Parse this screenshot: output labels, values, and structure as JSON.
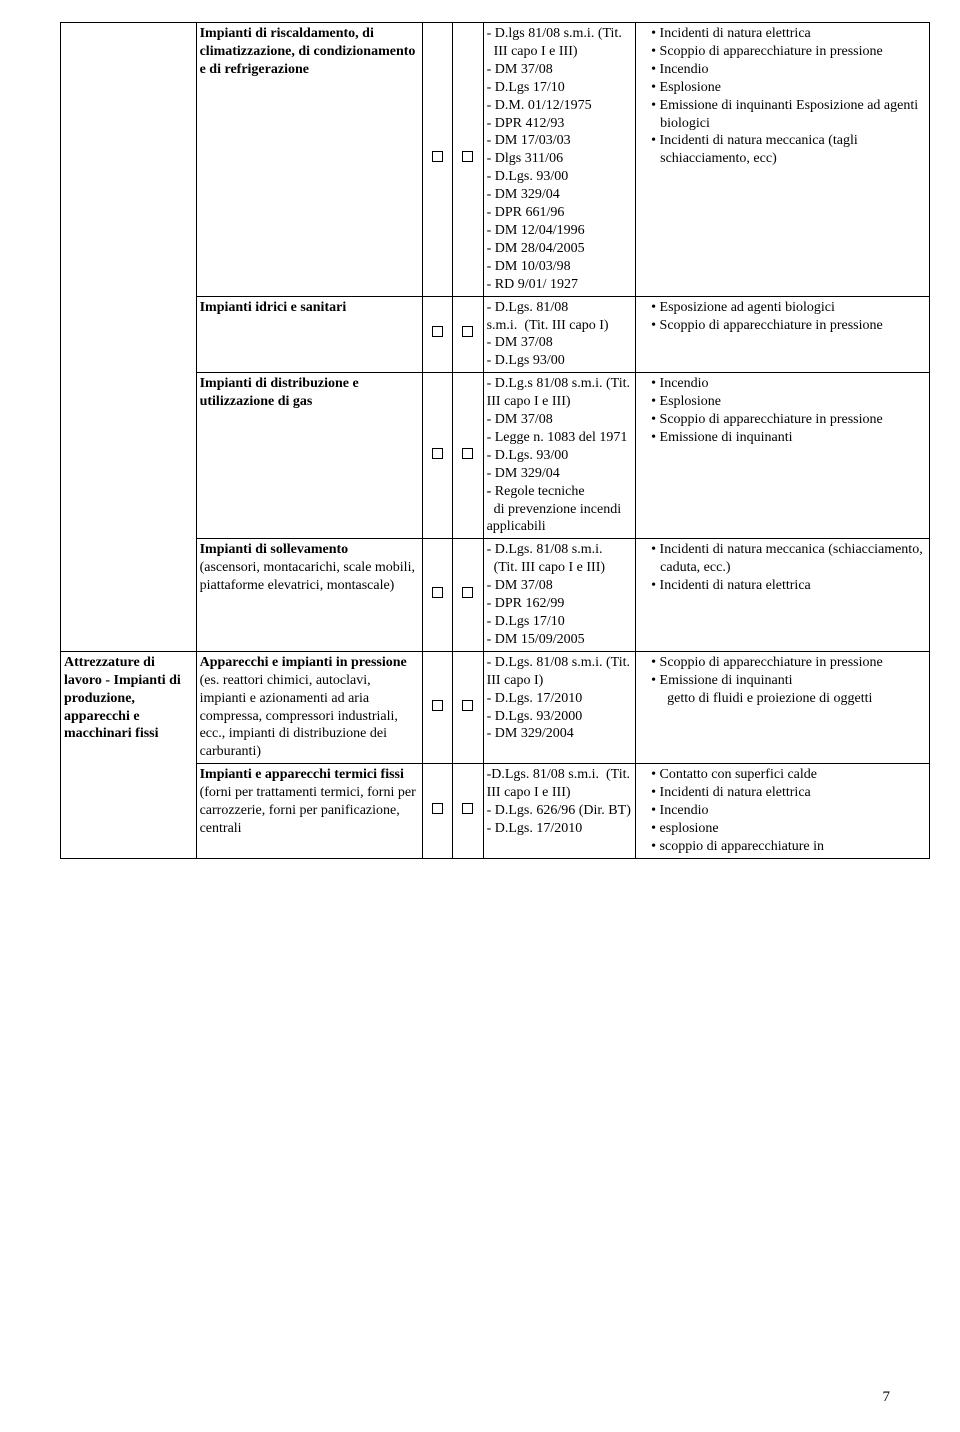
{
  "pageNumber": "7",
  "groupHeader": "Attrezzature di lavoro - Impianti di produzione, apparecchi e macchinari fissi",
  "rows": [
    {
      "col1_bold": "Impianti di riscaldamento, di climatizzazione, di condizionamento e di refrigerazione",
      "col1_plain": "",
      "col4": "- D.lgs 81/08 s.m.i. (Tit.\n  III capo I e III)\n- DM 37/08\n- D.Lgs 17/10\n- D.M. 01/12/1975\n- DPR 412/93\n- DM 17/03/03\n- Dlgs 311/06\n- D.Lgs. 93/00\n- DM 329/04\n- DPR 661/96\n- DM 12/04/1996\n- DM 28/04/2005\n- DM 10/03/98\n- RD 9/01/ 1927",
      "bullets": [
        "Incidenti di natura elettrica",
        "Scoppio di apparecchiature in pressione",
        "Incendio",
        "Esplosione",
        "Emissione di inquinanti Esposizione ad agenti biologici",
        "Incidenti di natura meccanica (tagli schiacciamento, ecc)"
      ]
    },
    {
      "col1_bold": "Impianti idrici e sanitari",
      "col1_plain": "",
      "col4": "- D.Lgs. 81/08 s.m.i.  (Tit. III capo I)\n- DM 37/08\n- D.Lgs 93/00",
      "bullets": [
        "Esposizione ad agenti biologici",
        "Scoppio di apparecchiature in pressione"
      ]
    },
    {
      "col1_bold": "Impianti di distribuzione e utilizzazione di gas",
      "col1_plain": "",
      "col4": "- D.Lg.s 81/08 s.m.i. (Tit. III capo I e III)\n- DM 37/08\n- Legge n. 1083 del 1971\n- D.Lgs. 93/00\n- DM 329/04\n- Regole tecniche\n  di prevenzione incendi applicabili",
      "col4_boldPrefix": "- ",
      "bullets": [
        "Incendio",
        "Esplosione",
        "Scoppio di apparecchiature in pressione",
        "Emissione di inquinanti"
      ]
    },
    {
      "col1_bold": "Impianti di sollevamento",
      "col1_plain": " (ascensori, montacarichi, scale mobili, piattaforme elevatrici, montascale)",
      "col4": "- D.Lgs. 81/08 s.m.i.\n  (Tit. III capo I e III)\n- DM 37/08\n- DPR 162/99\n- D.Lgs 17/10\n- DM 15/09/2005",
      "bullets": [
        "Incidenti di natura meccanica (schiacciamento, caduta, ecc.)",
        "Incidenti di natura elettrica"
      ]
    },
    {
      "col1_bold": "Apparecchi e impianti in pressione",
      "col1_plain": "(es. reattori chimici, autoclavi, impianti e azionamenti ad aria compressa,  compressori industriali, ecc., impianti di distribuzione dei carburanti)",
      "col4": "- D.Lgs. 81/08 s.m.i. (Tit. III capo I)\n- D.Lgs. 17/2010\n- D.Lgs. 93/2000\n- DM 329/2004",
      "bullets": [
        "Scoppio di apparecchiature in pressione",
        "Emissione di inquinanti\n  getto di fluidi e proiezione di oggetti"
      ]
    },
    {
      "col1_bold": "Impianti e apparecchi termici fissi",
      "col1_plain": "(forni per trattamenti termici, forni per carrozzerie, forni per panificazione, centrali",
      "col4": "-D.Lgs. 81/08 s.m.i.  (Tit. III capo I e III)\n- D.Lgs. 626/96 (Dir. BT)\n- D.Lgs. 17/2010",
      "bullets": [
        "Contatto con superfici calde",
        "Incidenti di natura elettrica",
        "Incendio",
        "esplosione",
        "scoppio di apparecchiature in"
      ]
    }
  ]
}
